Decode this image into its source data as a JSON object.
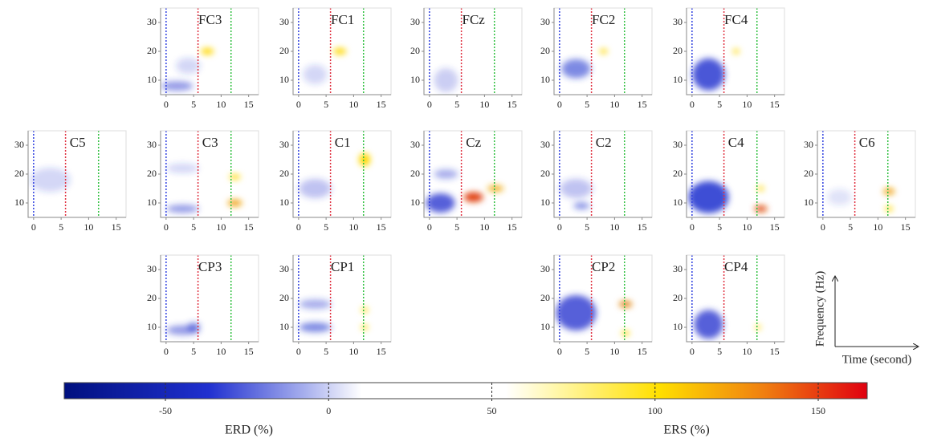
{
  "panel_axes": {
    "xlim": [
      -1,
      16.8
    ],
    "ylim": [
      5,
      35
    ]
  },
  "panels": [
    {
      "label": "FC3",
      "xticks": [
        0,
        5,
        10,
        15
      ],
      "yticks": [
        10,
        20,
        30
      ]
    },
    {
      "label": "FC1",
      "xticks": [
        0,
        5,
        10,
        15
      ],
      "yticks": [
        10,
        20,
        30
      ]
    },
    {
      "label": "FCz",
      "xticks": [
        0,
        5,
        10,
        15
      ],
      "yticks": [
        10,
        20,
        30
      ]
    },
    {
      "label": "FC2",
      "xticks": [
        0,
        5,
        10,
        15
      ],
      "yticks": [
        10,
        20,
        30
      ]
    },
    {
      "label": "FC4",
      "xticks": [
        0,
        5,
        10,
        15
      ],
      "yticks": [
        10,
        20,
        30
      ]
    },
    {
      "label": "C5",
      "xticks": [
        0,
        5,
        10,
        15
      ],
      "yticks": [
        10,
        20,
        30
      ]
    },
    {
      "label": "C3",
      "xticks": [
        0,
        5,
        10,
        15
      ],
      "yticks": [
        10,
        20,
        30
      ]
    },
    {
      "label": "C1",
      "xticks": [
        0,
        5,
        10,
        15
      ],
      "yticks": [
        10,
        20,
        30
      ]
    },
    {
      "label": "Cz",
      "xticks": [
        0,
        5,
        10,
        15
      ],
      "yticks": [
        10,
        20,
        30
      ]
    },
    {
      "label": "C2",
      "xticks": [
        0,
        5,
        10,
        15
      ],
      "yticks": [
        10,
        20,
        30
      ]
    },
    {
      "label": "C4",
      "xticks": [
        0,
        5,
        10,
        15
      ],
      "yticks": [
        10,
        20,
        30
      ]
    },
    {
      "label": "C6",
      "xticks": [
        0,
        5,
        10,
        15
      ],
      "yticks": [
        10,
        20,
        30
      ]
    },
    {
      "label": "CP3",
      "xticks": [
        0,
        5,
        10,
        15
      ],
      "yticks": [
        10,
        20,
        30
      ]
    },
    {
      "label": "CP1",
      "xticks": [
        0,
        5,
        10,
        15
      ],
      "yticks": [
        10,
        20,
        30
      ]
    },
    {
      "label": "CP2",
      "xticks": [
        0,
        5,
        10,
        15
      ],
      "yticks": [
        10,
        20,
        30
      ]
    },
    {
      "label": "CP4",
      "xticks": [
        0,
        5,
        10,
        15
      ],
      "yticks": [
        10,
        20,
        30
      ]
    }
  ],
  "colorbar": {
    "lim": [
      -81,
      165
    ],
    "ticks": [
      -50,
      0,
      50,
      100,
      150
    ],
    "erd_label": "ERD (%)",
    "ers_label": "ERS (%)"
  },
  "axes_key": {
    "y_label": "Frequency (Hz)",
    "x_label": "Time (second)"
  }
}
